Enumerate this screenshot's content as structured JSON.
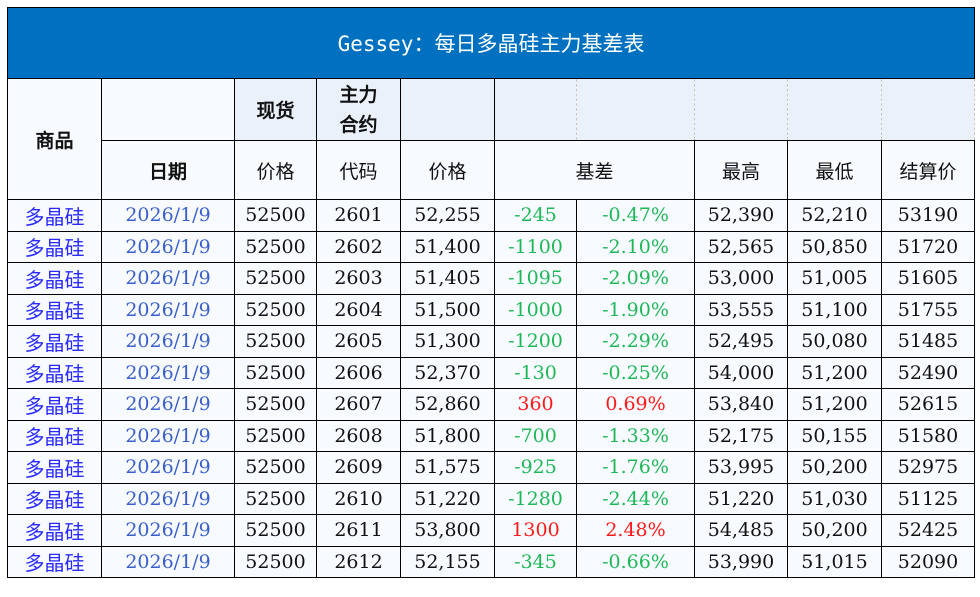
{
  "title": "Gessey：每日多晶硅主力基差表",
  "headers": {
    "product": "商品",
    "date": "日期",
    "spot": "现货",
    "spot_price": "价格",
    "main_contract": "主力合约",
    "contract_code": "代码",
    "price": "价格",
    "basis": "基差",
    "high": "最高",
    "low": "最低",
    "settle": "结算价"
  },
  "colors": {
    "title_bg": "#0070c0",
    "negative": "#1fb857",
    "positive": "#ff1a1a"
  },
  "rows": [
    {
      "product": "多晶硅",
      "date": "2026/1/9",
      "spot": "52500",
      "code": "2601",
      "price": "52,255",
      "basis": "-245",
      "basis_pct": "-0.47%",
      "high": "52,390",
      "low": "52,210",
      "settle": "53190"
    },
    {
      "product": "多晶硅",
      "date": "2026/1/9",
      "spot": "52500",
      "code": "2602",
      "price": "51,400",
      "basis": "-1100",
      "basis_pct": "-2.10%",
      "high": "52,565",
      "low": "50,850",
      "settle": "51720"
    },
    {
      "product": "多晶硅",
      "date": "2026/1/9",
      "spot": "52500",
      "code": "2603",
      "price": "51,405",
      "basis": "-1095",
      "basis_pct": "-2.09%",
      "high": "53,000",
      "low": "51,005",
      "settle": "51605"
    },
    {
      "product": "多晶硅",
      "date": "2026/1/9",
      "spot": "52500",
      "code": "2604",
      "price": "51,500",
      "basis": "-1000",
      "basis_pct": "-1.90%",
      "high": "53,555",
      "low": "51,100",
      "settle": "51755"
    },
    {
      "product": "多晶硅",
      "date": "2026/1/9",
      "spot": "52500",
      "code": "2605",
      "price": "51,300",
      "basis": "-1200",
      "basis_pct": "-2.29%",
      "high": "52,495",
      "low": "50,080",
      "settle": "51485"
    },
    {
      "product": "多晶硅",
      "date": "2026/1/9",
      "spot": "52500",
      "code": "2606",
      "price": "52,370",
      "basis": "-130",
      "basis_pct": "-0.25%",
      "high": "54,000",
      "low": "51,200",
      "settle": "52490"
    },
    {
      "product": "多晶硅",
      "date": "2026/1/9",
      "spot": "52500",
      "code": "2607",
      "price": "52,860",
      "basis": "360",
      "basis_pct": "0.69%",
      "high": "53,840",
      "low": "51,200",
      "settle": "52615"
    },
    {
      "product": "多晶硅",
      "date": "2026/1/9",
      "spot": "52500",
      "code": "2608",
      "price": "51,800",
      "basis": "-700",
      "basis_pct": "-1.33%",
      "high": "52,175",
      "low": "50,155",
      "settle": "51580"
    },
    {
      "product": "多晶硅",
      "date": "2026/1/9",
      "spot": "52500",
      "code": "2609",
      "price": "51,575",
      "basis": "-925",
      "basis_pct": "-1.76%",
      "high": "53,995",
      "low": "50,200",
      "settle": "52975"
    },
    {
      "product": "多晶硅",
      "date": "2026/1/9",
      "spot": "52500",
      "code": "2610",
      "price": "51,220",
      "basis": "-1280",
      "basis_pct": "-2.44%",
      "high": "51,220",
      "low": "51,030",
      "settle": "51125"
    },
    {
      "product": "多晶硅",
      "date": "2026/1/9",
      "spot": "52500",
      "code": "2611",
      "price": "53,800",
      "basis": "1300",
      "basis_pct": "2.48%",
      "high": "54,485",
      "low": "50,200",
      "settle": "52425"
    },
    {
      "product": "多晶硅",
      "date": "2026/1/9",
      "spot": "52500",
      "code": "2612",
      "price": "52,155",
      "basis": "-345",
      "basis_pct": "-0.66%",
      "high": "53,990",
      "low": "51,015",
      "settle": "52090"
    }
  ]
}
